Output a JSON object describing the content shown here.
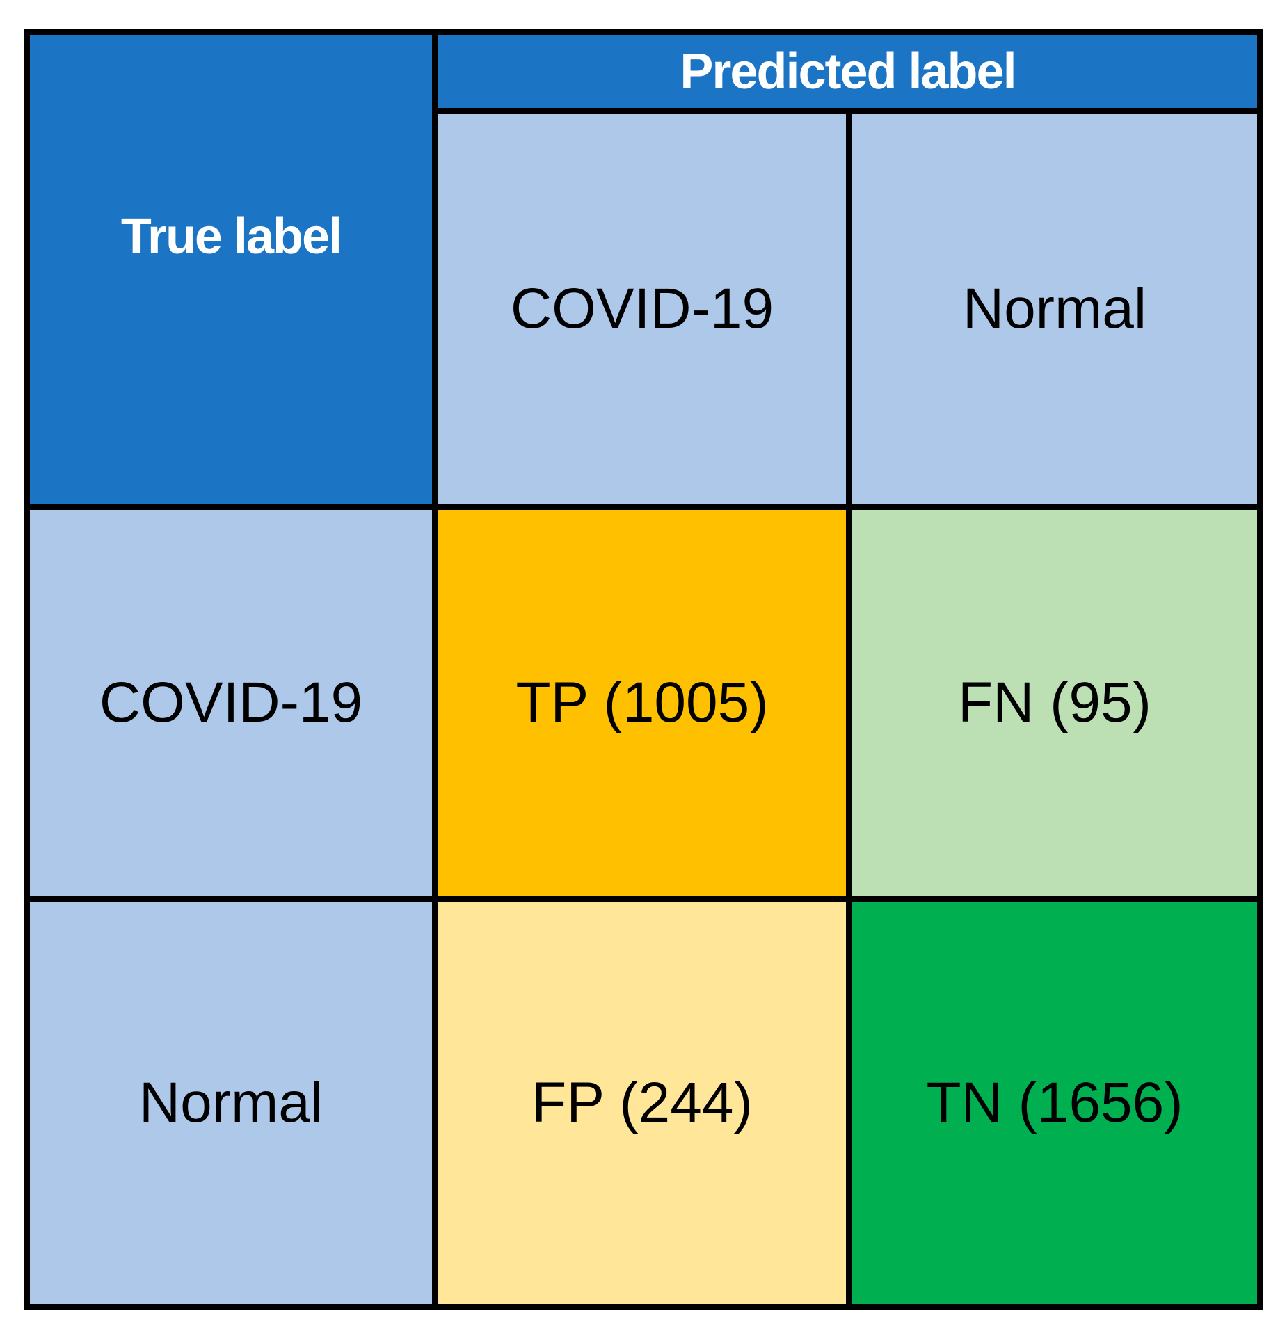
{
  "figure": {
    "kind": "confusion-matrix"
  },
  "matrix": {
    "corner_label": "True label",
    "predicted_axis_label": "Predicted label",
    "col_headers": [
      "COVID-19",
      "Normal"
    ],
    "row_headers": [
      "COVID-19",
      "Normal"
    ],
    "cells": {
      "tp": "TP (1005)",
      "fn": "FN (95)",
      "fp": "FP (244)",
      "tn": "TN (1656)"
    }
  },
  "colors": {
    "header_blue": "#1B74C4",
    "label_light_blue": "#AEC8EA",
    "tp_orange": "#FFC000",
    "fn_light_green": "#BDDFB4",
    "fp_pale_yellow": "#FFE699",
    "tn_green": "#00B050",
    "border_black": "#000000",
    "header_text_white": "#FFFFFF",
    "body_text_black": "#000000"
  },
  "chart_data": {
    "type": "heatmap",
    "x_axis_label": "Predicted label",
    "y_axis_label": "True label",
    "x_categories": [
      "COVID-19",
      "Normal"
    ],
    "y_categories": [
      "COVID-19",
      "Normal"
    ],
    "values": [
      [
        1005,
        95
      ],
      [
        244,
        1656
      ]
    ],
    "cell_labels": [
      [
        "TP (1005)",
        "FN (95)"
      ],
      [
        "FP (244)",
        "TN (1656)"
      ]
    ],
    "cell_colors": [
      [
        "#FFC000",
        "#BDDFB4"
      ],
      [
        "#FFE699",
        "#00B050"
      ]
    ],
    "legend_position": "none",
    "grid": "black cell borders"
  }
}
